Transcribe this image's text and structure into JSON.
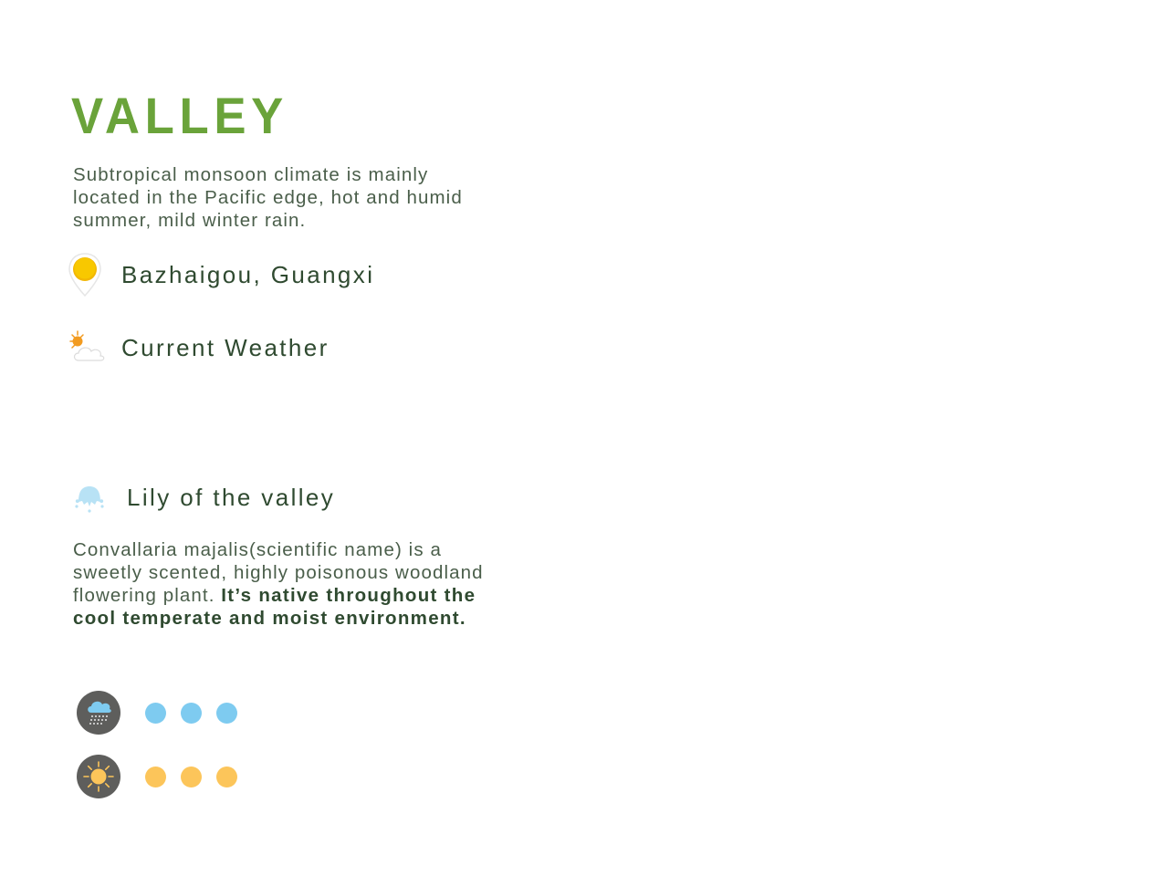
{
  "brand": {
    "title": "VALLEY",
    "color": "#6aa33a"
  },
  "intro": {
    "text": "Subtropical monsoon climate is mainly located in the Pacific edge, hot and humid summer, mild winter rain."
  },
  "location": {
    "icon": "location-pin-sun-icon",
    "label": "Bazhaigou, Guangxi"
  },
  "weather": {
    "icon": "partly-cloudy-icon",
    "label": "Current Weather"
  },
  "plant": {
    "icon": "lily-of-the-valley-icon",
    "label": "Lily of the valley",
    "description_regular": "Convallaria majalis(scientific name) is a sweetly scented, highly poisonous woodland flowering plant. ",
    "description_bold": "It’s native throughout the cool temperate and moist environment."
  },
  "legend": [
    {
      "icon": "rain-cloud-icon",
      "dot_color": "#7ecbf0",
      "dot_count": 3
    },
    {
      "icon": "sun-icon",
      "dot_color": "#fcc55a",
      "dot_count": 3
    }
  ]
}
